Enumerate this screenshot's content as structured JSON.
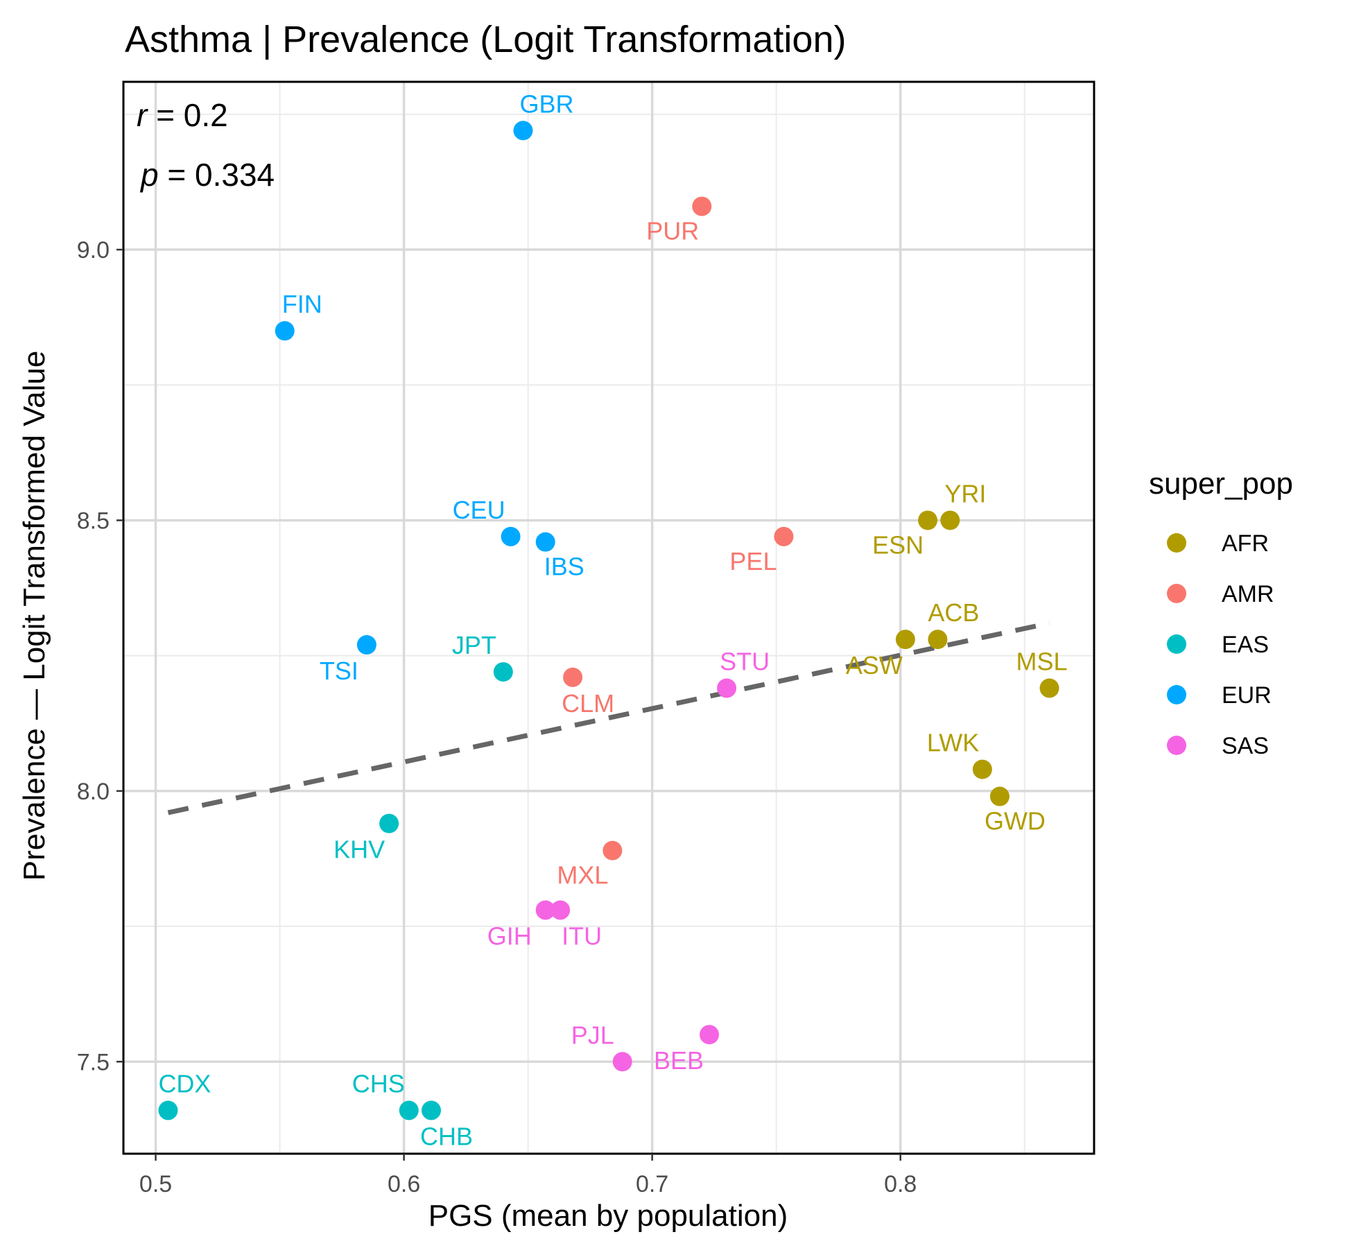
{
  "chart_data": {
    "type": "scatter",
    "title": "Asthma | Prevalence (Logit Transformation)",
    "xlabel": "PGS (mean by population)",
    "ylabel": "Prevalence — Logit Transformed Value",
    "xlim": [
      0.487,
      0.878
    ],
    "ylim": [
      7.33,
      9.31
    ],
    "x_ticks": [
      0.5,
      0.6,
      0.7,
      0.8
    ],
    "x_tick_labels": [
      "0.5",
      "0.6",
      "0.7",
      "0.8"
    ],
    "y_ticks": [
      7.5,
      8.0,
      8.5,
      9.0
    ],
    "y_tick_labels": [
      "7.5",
      "8.0",
      "8.5",
      "9.0"
    ],
    "y_minor_ticks": [
      7.75,
      8.25,
      8.75,
      9.25
    ],
    "x_minor_ticks": [
      0.55,
      0.65,
      0.75,
      0.85
    ],
    "grid": true,
    "stats": {
      "r_label": "r",
      "r_value": " = 0.2",
      "p_label": "p",
      "p_value": " = 0.334"
    },
    "trend_line": {
      "x": [
        0.505,
        0.86
      ],
      "y": [
        7.96,
        8.31
      ],
      "style": "dashed",
      "color": "#666666"
    },
    "legend": {
      "title": "super_pop",
      "placement": "right",
      "entries": [
        {
          "name": "AFR",
          "color": "#B09C00"
        },
        {
          "name": "AMR",
          "color": "#F8766D"
        },
        {
          "name": "EAS",
          "color": "#00BFC4"
        },
        {
          "name": "EUR",
          "color": "#00A9FF"
        },
        {
          "name": "SAS",
          "color": "#F564E3"
        }
      ]
    },
    "points": [
      {
        "label": "GBR",
        "group": "EUR",
        "x": 0.648,
        "y": 9.22
      },
      {
        "label": "PUR",
        "group": "AMR",
        "x": 0.72,
        "y": 9.08
      },
      {
        "label": "FIN",
        "group": "EUR",
        "x": 0.552,
        "y": 8.85
      },
      {
        "label": "CEU",
        "group": "EUR",
        "x": 0.643,
        "y": 8.47
      },
      {
        "label": "IBS",
        "group": "EUR",
        "x": 0.657,
        "y": 8.46
      },
      {
        "label": "PEL",
        "group": "AMR",
        "x": 0.753,
        "y": 8.47
      },
      {
        "label": "ESN",
        "group": "AFR",
        "x": 0.811,
        "y": 8.5
      },
      {
        "label": "YRI",
        "group": "AFR",
        "x": 0.82,
        "y": 8.5
      },
      {
        "label": "TSI",
        "group": "EUR",
        "x": 0.585,
        "y": 8.27
      },
      {
        "label": "JPT",
        "group": "EAS",
        "x": 0.64,
        "y": 8.22
      },
      {
        "label": "CLM",
        "group": "AMR",
        "x": 0.668,
        "y": 8.21
      },
      {
        "label": "STU",
        "group": "SAS",
        "x": 0.73,
        "y": 8.19
      },
      {
        "label": "ASW",
        "group": "AFR",
        "x": 0.802,
        "y": 8.28
      },
      {
        "label": "ACB",
        "group": "AFR",
        "x": 0.815,
        "y": 8.28
      },
      {
        "label": "MSL",
        "group": "AFR",
        "x": 0.86,
        "y": 8.19
      },
      {
        "label": "LWK",
        "group": "AFR",
        "x": 0.833,
        "y": 8.04
      },
      {
        "label": "GWD",
        "group": "AFR",
        "x": 0.84,
        "y": 7.99
      },
      {
        "label": "KHV",
        "group": "EAS",
        "x": 0.594,
        "y": 7.94
      },
      {
        "label": "MXL",
        "group": "AMR",
        "x": 0.684,
        "y": 7.89
      },
      {
        "label": "GIH",
        "group": "SAS",
        "x": 0.657,
        "y": 7.78
      },
      {
        "label": "ITU",
        "group": "SAS",
        "x": 0.663,
        "y": 7.78
      },
      {
        "label": "PJL",
        "group": "SAS",
        "x": 0.688,
        "y": 7.5
      },
      {
        "label": "BEB",
        "group": "SAS",
        "x": 0.723,
        "y": 7.55
      },
      {
        "label": "CDX",
        "group": "EAS",
        "x": 0.505,
        "y": 7.41
      },
      {
        "label": "CHS",
        "group": "EAS",
        "x": 0.602,
        "y": 7.41
      },
      {
        "label": "CHB",
        "group": "EAS",
        "x": 0.611,
        "y": 7.41
      }
    ]
  }
}
